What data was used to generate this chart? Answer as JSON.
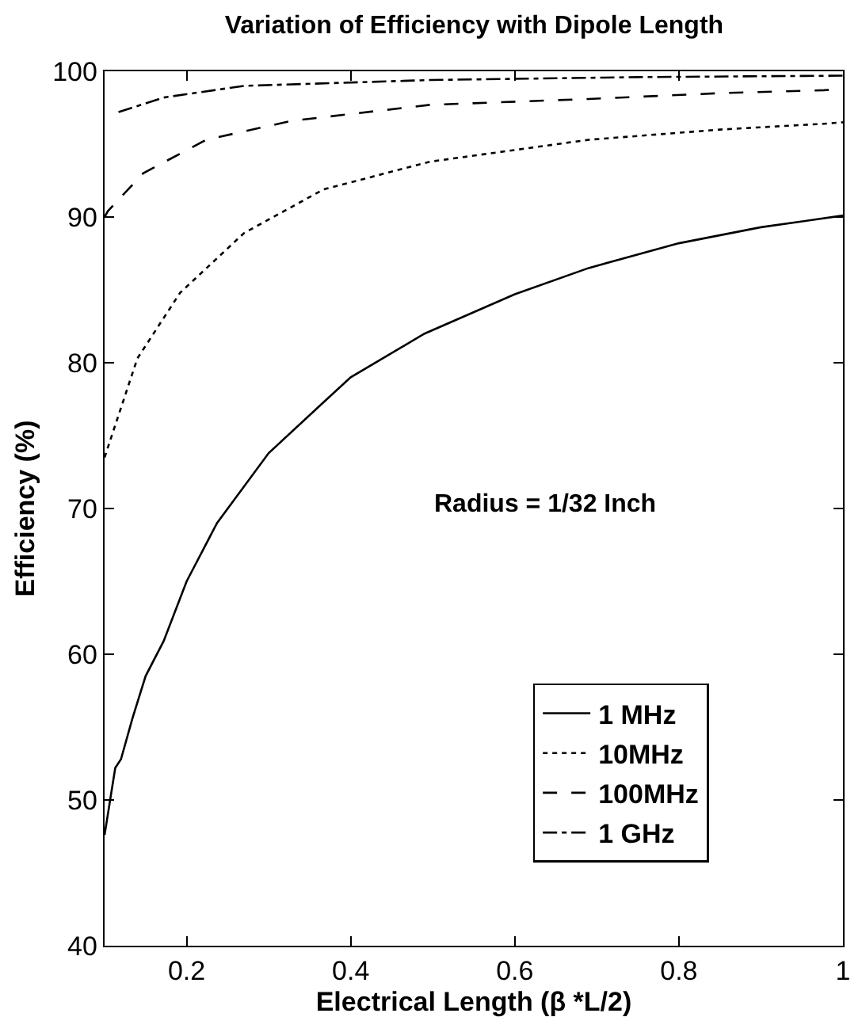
{
  "chart_data": {
    "type": "line",
    "title": "Variation of Efficiency with Dipole Length",
    "xlabel": "Electrical Length (β *L/2)",
    "ylabel": "Efficiency (%)",
    "annotations": [
      "Radius = 1/32 Inch"
    ],
    "xlim": [
      0.1,
      1
    ],
    "xticks": [
      0.2,
      0.4,
      0.6,
      0.8,
      1
    ],
    "ylim": [
      40,
      100
    ],
    "yticks": [
      40,
      50,
      60,
      70,
      80,
      90,
      100
    ],
    "grid": false,
    "legend": "bottom right",
    "marker": "none",
    "series": [
      {
        "name": "1 MHz",
        "color": "#000000",
        "line_style": "solid",
        "x": [
          0.1,
          0.113,
          0.12,
          0.134,
          0.15,
          0.172,
          0.2,
          0.237,
          0.3,
          0.367,
          0.4,
          0.49,
          0.6,
          0.69,
          0.8,
          0.9,
          1.0
        ],
        "values": [
          47.6,
          52.2,
          52.8,
          55.6,
          58.5,
          60.9,
          65,
          69.0,
          73.8,
          77.3,
          79.0,
          82.0,
          84.7,
          86.5,
          88.2,
          89.3,
          90.1
        ]
      },
      {
        "name": "10MHz",
        "color": "#000000",
        "line_style": "dotted",
        "x": [
          0.1,
          0.107,
          0.14,
          0.192,
          0.27,
          0.367,
          0.497,
          0.69,
          0.85,
          0.977,
          1.0
        ],
        "values": [
          73.5,
          74.7,
          80.3,
          84.8,
          88.9,
          91.9,
          93.8,
          95.3,
          96.0,
          96.4,
          96.5
        ]
      },
      {
        "name": "100MHz",
        "color": "#000000",
        "line_style": "dashed",
        "x": [
          0.1,
          0.104,
          0.147,
          0.224,
          0.328,
          0.497,
          0.69,
          0.85,
          0.977,
          1.0
        ],
        "values": [
          90.0,
          90.4,
          93.0,
          95.3,
          96.6,
          97.7,
          98.1,
          98.5,
          98.7,
          98.8
        ]
      },
      {
        "name": "1 GHz",
        "color": "#000000",
        "line_style": "dashdot",
        "x": [
          0.117,
          0.172,
          0.27,
          0.497,
          0.75,
          1.0
        ],
        "values": [
          97.2,
          98.2,
          99.0,
          99.4,
          99.6,
          99.7
        ]
      }
    ]
  }
}
